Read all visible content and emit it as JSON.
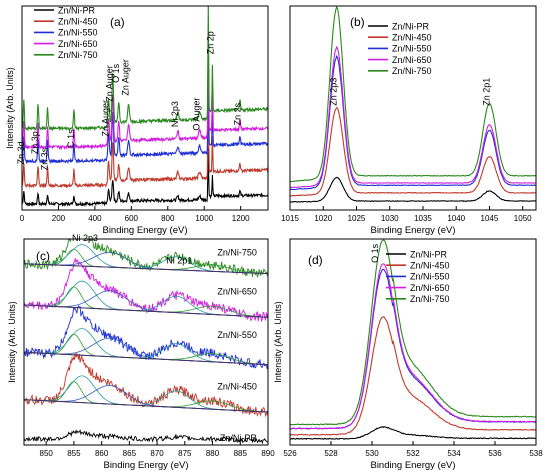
{
  "colors": {
    "Zn/Ni-PR": "#000000",
    "Zn/Ni-450": "#c0392b",
    "Zn/Ni-550": "#1f2fd6",
    "Zn/Ni-650": "#d21ee0",
    "Zn/Ni-750": "#2a8a1e",
    "fit_green": "#30a030",
    "fit_teal": "#2a9d9d",
    "fit_blue": "#3060c0",
    "baseline": "#4b2a6e"
  },
  "chart_data": [
    {
      "panel_label": "(a)",
      "type": "line",
      "xlabel": "Binding Energy (eV)",
      "ylabel": "Intensity (Arb. Units)",
      "xlim": [
        0,
        1350
      ],
      "xticks": [
        0,
        200,
        400,
        600,
        800,
        1000,
        1200
      ],
      "ylim": [
        0,
        100
      ],
      "legend_position": "top-left",
      "series": [
        {
          "name": "Zn/Ni-PR",
          "offset": 3,
          "scale": 0.45
        },
        {
          "name": "Zn/Ni-450",
          "offset": 12,
          "scale": 0.8
        },
        {
          "name": "Zn/Ni-550",
          "offset": 24,
          "scale": 0.9
        },
        {
          "name": "Zn/Ni-650",
          "offset": 31,
          "scale": 0.95
        },
        {
          "name": "Zn/Ni-750",
          "offset": 40,
          "scale": 1.0
        }
      ],
      "peaks": [
        {
          "x": 10,
          "height": 14,
          "width": 3
        },
        {
          "x": 88,
          "height": 12,
          "width": 3
        },
        {
          "x": 140,
          "height": 11,
          "width": 3
        },
        {
          "x": 285,
          "height": 10,
          "width": 3
        },
        {
          "x": 475,
          "height": 12,
          "width": 4
        },
        {
          "x": 498,
          "height": 24,
          "width": 4
        },
        {
          "x": 531,
          "height": 10,
          "width": 4
        },
        {
          "x": 585,
          "height": 8,
          "width": 5
        },
        {
          "x": 855,
          "height": 4,
          "width": 5
        },
        {
          "x": 975,
          "height": 4,
          "width": 6
        },
        {
          "x": 1022,
          "height": 55,
          "width": 2
        },
        {
          "x": 1045,
          "height": 22,
          "width": 2
        },
        {
          "x": 1196,
          "height": 5,
          "width": 3
        }
      ],
      "annotations": [
        {
          "text": "Zn 3d",
          "x": 10,
          "y": 28
        },
        {
          "text": "Zn 3p",
          "x": 88,
          "y": 33
        },
        {
          "text": "Zn 3s",
          "x": 140,
          "y": 25
        },
        {
          "text": "C 1s",
          "x": 285,
          "y": 35
        },
        {
          "text": "Zn Auger",
          "x": 475,
          "y": 45
        },
        {
          "text": "Zn Auger",
          "x": 498,
          "y": 62
        },
        {
          "text": "O 1s",
          "x": 531,
          "y": 67
        },
        {
          "text": "Zn Auger",
          "x": 585,
          "y": 65
        },
        {
          "text": "Ni 2p3",
          "x": 855,
          "y": 47
        },
        {
          "text": "O Auger",
          "x": 975,
          "y": 47
        },
        {
          "text": "Zn 2p",
          "x": 1050,
          "y": 82
        },
        {
          "text": "Zn 2s",
          "x": 1200,
          "y": 47
        }
      ]
    },
    {
      "panel_label": "(b)",
      "type": "line",
      "xlabel": "Binding Energy (eV)",
      "ylabel": "",
      "xlim": [
        1015,
        1052
      ],
      "xticks": [
        1015,
        1020,
        1025,
        1030,
        1035,
        1040,
        1045,
        1050
      ],
      "ylim": [
        0,
        100
      ],
      "legend_position": "top-center",
      "series": [
        {
          "name": "Zn/Ni-PR",
          "offset": 4,
          "scale": 0.13
        },
        {
          "name": "Zn/Ni-450",
          "offset": 7,
          "scale": 0.47
        },
        {
          "name": "Zn/Ni-550",
          "offset": 10,
          "scale": 0.71
        },
        {
          "name": "Zn/Ni-650",
          "offset": 11,
          "scale": 0.75
        },
        {
          "name": "Zn/Ni-750",
          "offset": 14,
          "scale": 0.93
        }
      ],
      "peaks": [
        {
          "x": 1022,
          "height": 89,
          "width": 1.0
        },
        {
          "x": 1045,
          "height": 38,
          "width": 1.0
        }
      ],
      "annotations": [
        {
          "text": "Zn 2p3",
          "x": 1022,
          "y": 58
        },
        {
          "text": "Zn 2p1",
          "x": 1045,
          "y": 58
        }
      ]
    },
    {
      "panel_label": "(c)",
      "type": "line",
      "xlabel": "Binding Energy (eV)",
      "ylabel": "Intensity (Arb. Units)",
      "xlim": [
        846,
        890
      ],
      "xticks": [
        850,
        855,
        860,
        865,
        870,
        875,
        880,
        885,
        890
      ],
      "ylim": [
        0,
        100
      ],
      "legend_position": "none",
      "series": [
        {
          "name": "Zn/Ni-PR",
          "offset": 3,
          "scale": 0.15
        },
        {
          "name": "Zn/Ni-450",
          "offset": 22,
          "scale": 1.0
        },
        {
          "name": "Zn/Ni-550",
          "offset": 45,
          "scale": 1.0
        },
        {
          "name": "Zn/Ni-650",
          "offset": 68,
          "scale": 1.0
        },
        {
          "name": "Zn/Ni-750",
          "offset": 88,
          "scale": 0.8
        }
      ],
      "components": [
        {
          "x": 855,
          "height": 10,
          "width": 1.3
        },
        {
          "x": 856.5,
          "height": 13,
          "width": 2.2
        },
        {
          "x": 861.5,
          "height": 9,
          "width": 3.0
        },
        {
          "x": 873.5,
          "height": 8,
          "width": 2.4
        },
        {
          "x": 880,
          "height": 4,
          "width": 3.0
        }
      ],
      "baseline_tilt": -6,
      "series_labels": [
        {
          "text": "Zn/Ni-750",
          "x": 888,
          "y": 92
        },
        {
          "text": "Zn/Ni-650",
          "x": 888,
          "y": 73
        },
        {
          "text": "Zn/Ni-550",
          "x": 888,
          "y": 52
        },
        {
          "text": "Zn/Ni-450",
          "x": 888,
          "y": 27
        },
        {
          "text": "Zn/Ni-PR",
          "x": 888,
          "y": 2
        }
      ],
      "annotations": [
        {
          "text": "Ni 2p3",
          "x": 857,
          "y": 99
        },
        {
          "text": "Ni 2p1",
          "x": 874,
          "y": 88
        }
      ]
    },
    {
      "panel_label": "(d)",
      "type": "line",
      "xlabel": "Binding Energy (eV)",
      "ylabel": "Intensity (Arb. Units)",
      "xlim": [
        526,
        538
      ],
      "xticks": [
        526,
        528,
        530,
        532,
        534,
        536,
        538
      ],
      "ylim": [
        0,
        100
      ],
      "legend_position": "top-right",
      "series": [
        {
          "name": "Zn/Ni-PR",
          "offset": 3,
          "scale": 0.06
        },
        {
          "name": "Zn/Ni-450",
          "offset": 5,
          "scale": 0.6
        },
        {
          "name": "Zn/Ni-550",
          "offset": 8,
          "scale": 0.81
        },
        {
          "name": "Zn/Ni-650",
          "offset": 8,
          "scale": 0.84
        },
        {
          "name": "Zn/Ni-750",
          "offset": 10,
          "scale": 0.94
        }
      ],
      "peaks": [
        {
          "x": 530.5,
          "height": 82,
          "width": 0.55
        },
        {
          "x": 531.8,
          "height": 26,
          "width": 1.1
        }
      ],
      "annotations": [
        {
          "text": "O 1s",
          "x": 530.3,
          "y": 93
        }
      ]
    }
  ]
}
